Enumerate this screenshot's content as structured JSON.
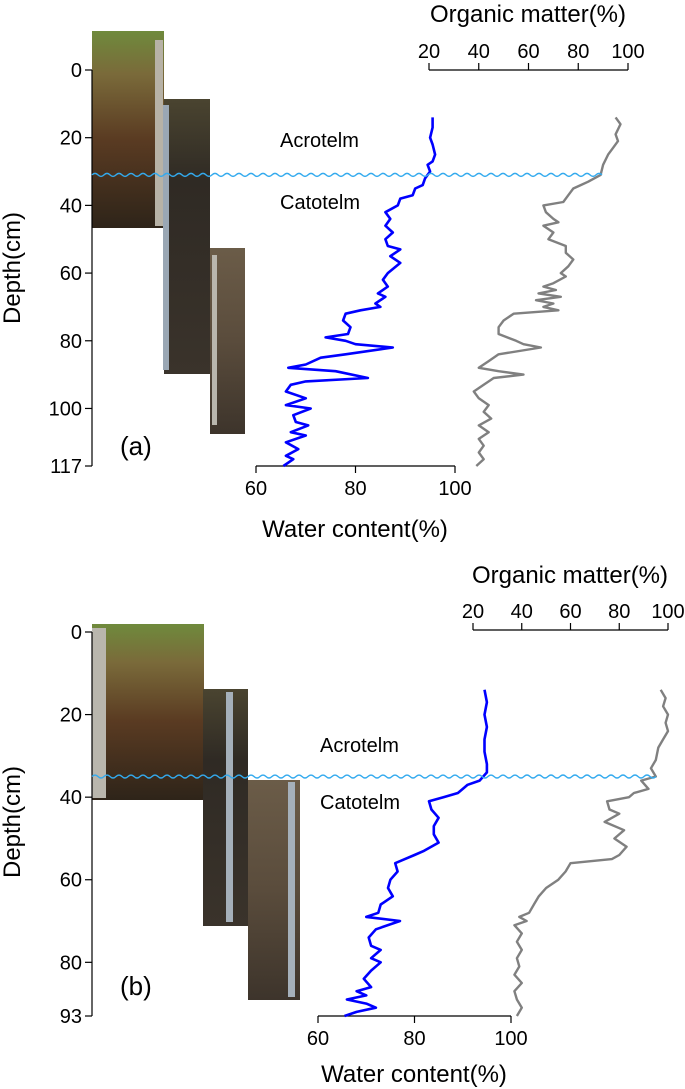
{
  "colors": {
    "water_content": "#0000ff",
    "organic_matter": "#808080",
    "water_table": "#33aaee",
    "axis": "#000000"
  },
  "chart_data": [
    {
      "type": "line",
      "panel_label": "(a)",
      "ylabel": "Depth(cm)",
      "y_ticks": [
        0,
        20,
        40,
        60,
        80,
        100,
        117
      ],
      "ylim": [
        -10,
        117
      ],
      "bottom_axis": {
        "label": "Water content(%)",
        "ticks": [
          60,
          80,
          100
        ],
        "xlim": [
          60,
          100
        ]
      },
      "top_axis": {
        "label": "Organic matter(%)",
        "ticks": [
          20,
          40,
          60,
          80,
          100
        ],
        "xlim": [
          20,
          100
        ]
      },
      "annotations": {
        "upper_zone": "Acrotelm",
        "lower_zone": "Catotelm"
      },
      "water_table_depth": 31,
      "photo_panels": 3,
      "series": [
        {
          "axis": "bottom",
          "points": [
            [
              95.5,
              14
            ],
            [
              95.5,
              17
            ],
            [
              95,
              20
            ],
            [
              95.5,
              22
            ],
            [
              96,
              25
            ],
            [
              95.5,
              27
            ],
            [
              94.5,
              28
            ],
            [
              95,
              30
            ],
            [
              94,
              32
            ],
            [
              93.5,
              34
            ],
            [
              92,
              35
            ],
            [
              91.5,
              37
            ],
            [
              89,
              38
            ],
            [
              88.5,
              40
            ],
            [
              86,
              42
            ],
            [
              87,
              44
            ],
            [
              86,
              46
            ],
            [
              87.5,
              48
            ],
            [
              86,
              50
            ],
            [
              86.5,
              52
            ],
            [
              89,
              53
            ],
            [
              87,
              55
            ],
            [
              89,
              57
            ],
            [
              86.5,
              60
            ],
            [
              85.5,
              62
            ],
            [
              86.5,
              64
            ],
            [
              84.5,
              66
            ],
            [
              86,
              67
            ],
            [
              84,
              69
            ],
            [
              85,
              70
            ],
            [
              81,
              71
            ],
            [
              78,
              72
            ],
            [
              77.5,
              74
            ],
            [
              79,
              76
            ],
            [
              78.5,
              78
            ],
            [
              74,
              79
            ],
            [
              78,
              80
            ],
            [
              80,
              81
            ],
            [
              87.5,
              82
            ],
            [
              78,
              84
            ],
            [
              73,
              85
            ],
            [
              70,
              87
            ],
            [
              66.5,
              88
            ],
            [
              76,
              89
            ],
            [
              82.5,
              91
            ],
            [
              70,
              92
            ],
            [
              67,
              93
            ],
            [
              66,
              95
            ],
            [
              70,
              97
            ],
            [
              66,
              99
            ],
            [
              71,
              100
            ],
            [
              67.5,
              102
            ],
            [
              68,
              104
            ],
            [
              70.5,
              105
            ],
            [
              67,
              107
            ],
            [
              70,
              108
            ],
            [
              66,
              110
            ],
            [
              68.5,
              112
            ],
            [
              66,
              114
            ],
            [
              67.5,
              115
            ],
            [
              65.5,
              117
            ]
          ]
        },
        {
          "axis": "top",
          "points": [
            [
              95,
              14
            ],
            [
              97,
              16
            ],
            [
              95,
              19
            ],
            [
              96,
              21
            ],
            [
              94,
              23
            ],
            [
              92,
              25
            ],
            [
              90,
              28
            ],
            [
              89,
              31
            ],
            [
              84,
              33
            ],
            [
              81,
              34
            ],
            [
              78,
              35
            ],
            [
              76,
              37
            ],
            [
              74,
              39
            ],
            [
              66,
              40
            ],
            [
              67,
              42
            ],
            [
              70,
              44
            ],
            [
              72,
              45
            ],
            [
              66,
              46
            ],
            [
              70,
              48
            ],
            [
              68,
              50
            ],
            [
              75,
              52
            ],
            [
              75,
              54
            ],
            [
              78,
              56
            ],
            [
              76,
              58
            ],
            [
              73,
              60
            ],
            [
              75,
              61
            ],
            [
              70,
              63
            ],
            [
              66,
              64
            ],
            [
              71,
              65
            ],
            [
              64,
              66
            ],
            [
              73,
              67
            ],
            [
              63,
              68
            ],
            [
              70,
              69
            ],
            [
              66,
              70
            ],
            [
              72,
              71
            ],
            [
              54,
              72
            ],
            [
              50,
              74
            ],
            [
              48,
              76
            ],
            [
              48,
              78
            ],
            [
              55,
              80
            ],
            [
              58,
              81
            ],
            [
              65,
              82
            ],
            [
              48,
              84
            ],
            [
              44,
              86
            ],
            [
              40,
              88
            ],
            [
              48,
              89
            ],
            [
              58,
              90
            ],
            [
              46,
              91
            ],
            [
              42,
              93
            ],
            [
              38,
              95
            ],
            [
              40,
              97
            ],
            [
              44,
              99
            ],
            [
              42,
              101
            ],
            [
              45,
              103
            ],
            [
              40,
              105
            ],
            [
              44,
              107
            ],
            [
              40,
              109
            ],
            [
              42,
              111
            ],
            [
              40,
              113
            ],
            [
              42,
              115
            ],
            [
              39,
              117
            ]
          ]
        }
      ]
    },
    {
      "type": "line",
      "panel_label": "(b)",
      "ylabel": "Depth(cm)",
      "y_ticks": [
        0,
        20,
        40,
        60,
        80,
        93
      ],
      "ylim": [
        0,
        93
      ],
      "bottom_axis": {
        "label": "Water content(%)",
        "ticks": [
          60,
          80,
          100
        ],
        "xlim": [
          60,
          100
        ]
      },
      "top_axis": {
        "label": "Organic matter(%)",
        "ticks": [
          20,
          40,
          60,
          80,
          100
        ],
        "xlim": [
          20,
          100
        ]
      },
      "annotations": {
        "upper_zone": "Acrotelm",
        "lower_zone": "Catotelm"
      },
      "water_table_depth": 35,
      "photo_panels": 3,
      "series": [
        {
          "axis": "bottom",
          "points": [
            [
              94.5,
              14
            ],
            [
              95,
              17
            ],
            [
              94.5,
              20
            ],
            [
              95,
              23
            ],
            [
              94.5,
              26
            ],
            [
              94.5,
              29
            ],
            [
              95,
              32
            ],
            [
              95,
              34
            ],
            [
              93.5,
              36
            ],
            [
              91,
              37
            ],
            [
              90,
              38
            ],
            [
              89,
              39
            ],
            [
              86,
              40
            ],
            [
              83,
              41
            ],
            [
              83.5,
              43
            ],
            [
              85,
              45
            ],
            [
              84,
              47
            ],
            [
              84,
              49
            ],
            [
              85,
              51
            ],
            [
              82,
              53
            ],
            [
              80,
              54
            ],
            [
              78,
              55
            ],
            [
              76,
              56
            ],
            [
              76.5,
              58
            ],
            [
              75,
              60
            ],
            [
              74.5,
              62
            ],
            [
              75.5,
              64
            ],
            [
              73,
              66
            ],
            [
              72.5,
              68
            ],
            [
              70,
              69
            ],
            [
              77,
              70
            ],
            [
              72,
              72
            ],
            [
              70.5,
              74
            ],
            [
              71,
              76
            ],
            [
              73,
              77
            ],
            [
              71,
              79
            ],
            [
              73,
              80
            ],
            [
              71,
              82
            ],
            [
              69.5,
              84
            ],
            [
              71,
              86
            ],
            [
              68,
              87
            ],
            [
              70,
              88
            ],
            [
              66,
              89
            ],
            [
              70,
              90
            ],
            [
              72,
              91
            ],
            [
              68,
              92
            ],
            [
              65.5,
              93
            ]
          ]
        },
        {
          "axis": "top",
          "points": [
            [
              97,
              14
            ],
            [
              99,
              16
            ],
            [
              98,
              18
            ],
            [
              100,
              20
            ],
            [
              99,
              22
            ],
            [
              100,
              24
            ],
            [
              98,
              26
            ],
            [
              96,
              28
            ],
            [
              95,
              31
            ],
            [
              93,
              33
            ],
            [
              95,
              35
            ],
            [
              89,
              36
            ],
            [
              92,
              38
            ],
            [
              86,
              39
            ],
            [
              84,
              40
            ],
            [
              75,
              41
            ],
            [
              76,
              43
            ],
            [
              80,
              44
            ],
            [
              74,
              46
            ],
            [
              82,
              48
            ],
            [
              78,
              50
            ],
            [
              83,
              52
            ],
            [
              80,
              54
            ],
            [
              77,
              55
            ],
            [
              60,
              56
            ],
            [
              58,
              58
            ],
            [
              55,
              60
            ],
            [
              50,
              62
            ],
            [
              47,
              64
            ],
            [
              45,
              66
            ],
            [
              43,
              68
            ],
            [
              39,
              69
            ],
            [
              42,
              70
            ],
            [
              37,
              71
            ],
            [
              40,
              73
            ],
            [
              38,
              75
            ],
            [
              40,
              77
            ],
            [
              38,
              79
            ],
            [
              39,
              81
            ],
            [
              37,
              83
            ],
            [
              40,
              85
            ],
            [
              37,
              87
            ],
            [
              38,
              89
            ],
            [
              40,
              91
            ],
            [
              38,
              93
            ]
          ]
        }
      ]
    }
  ]
}
